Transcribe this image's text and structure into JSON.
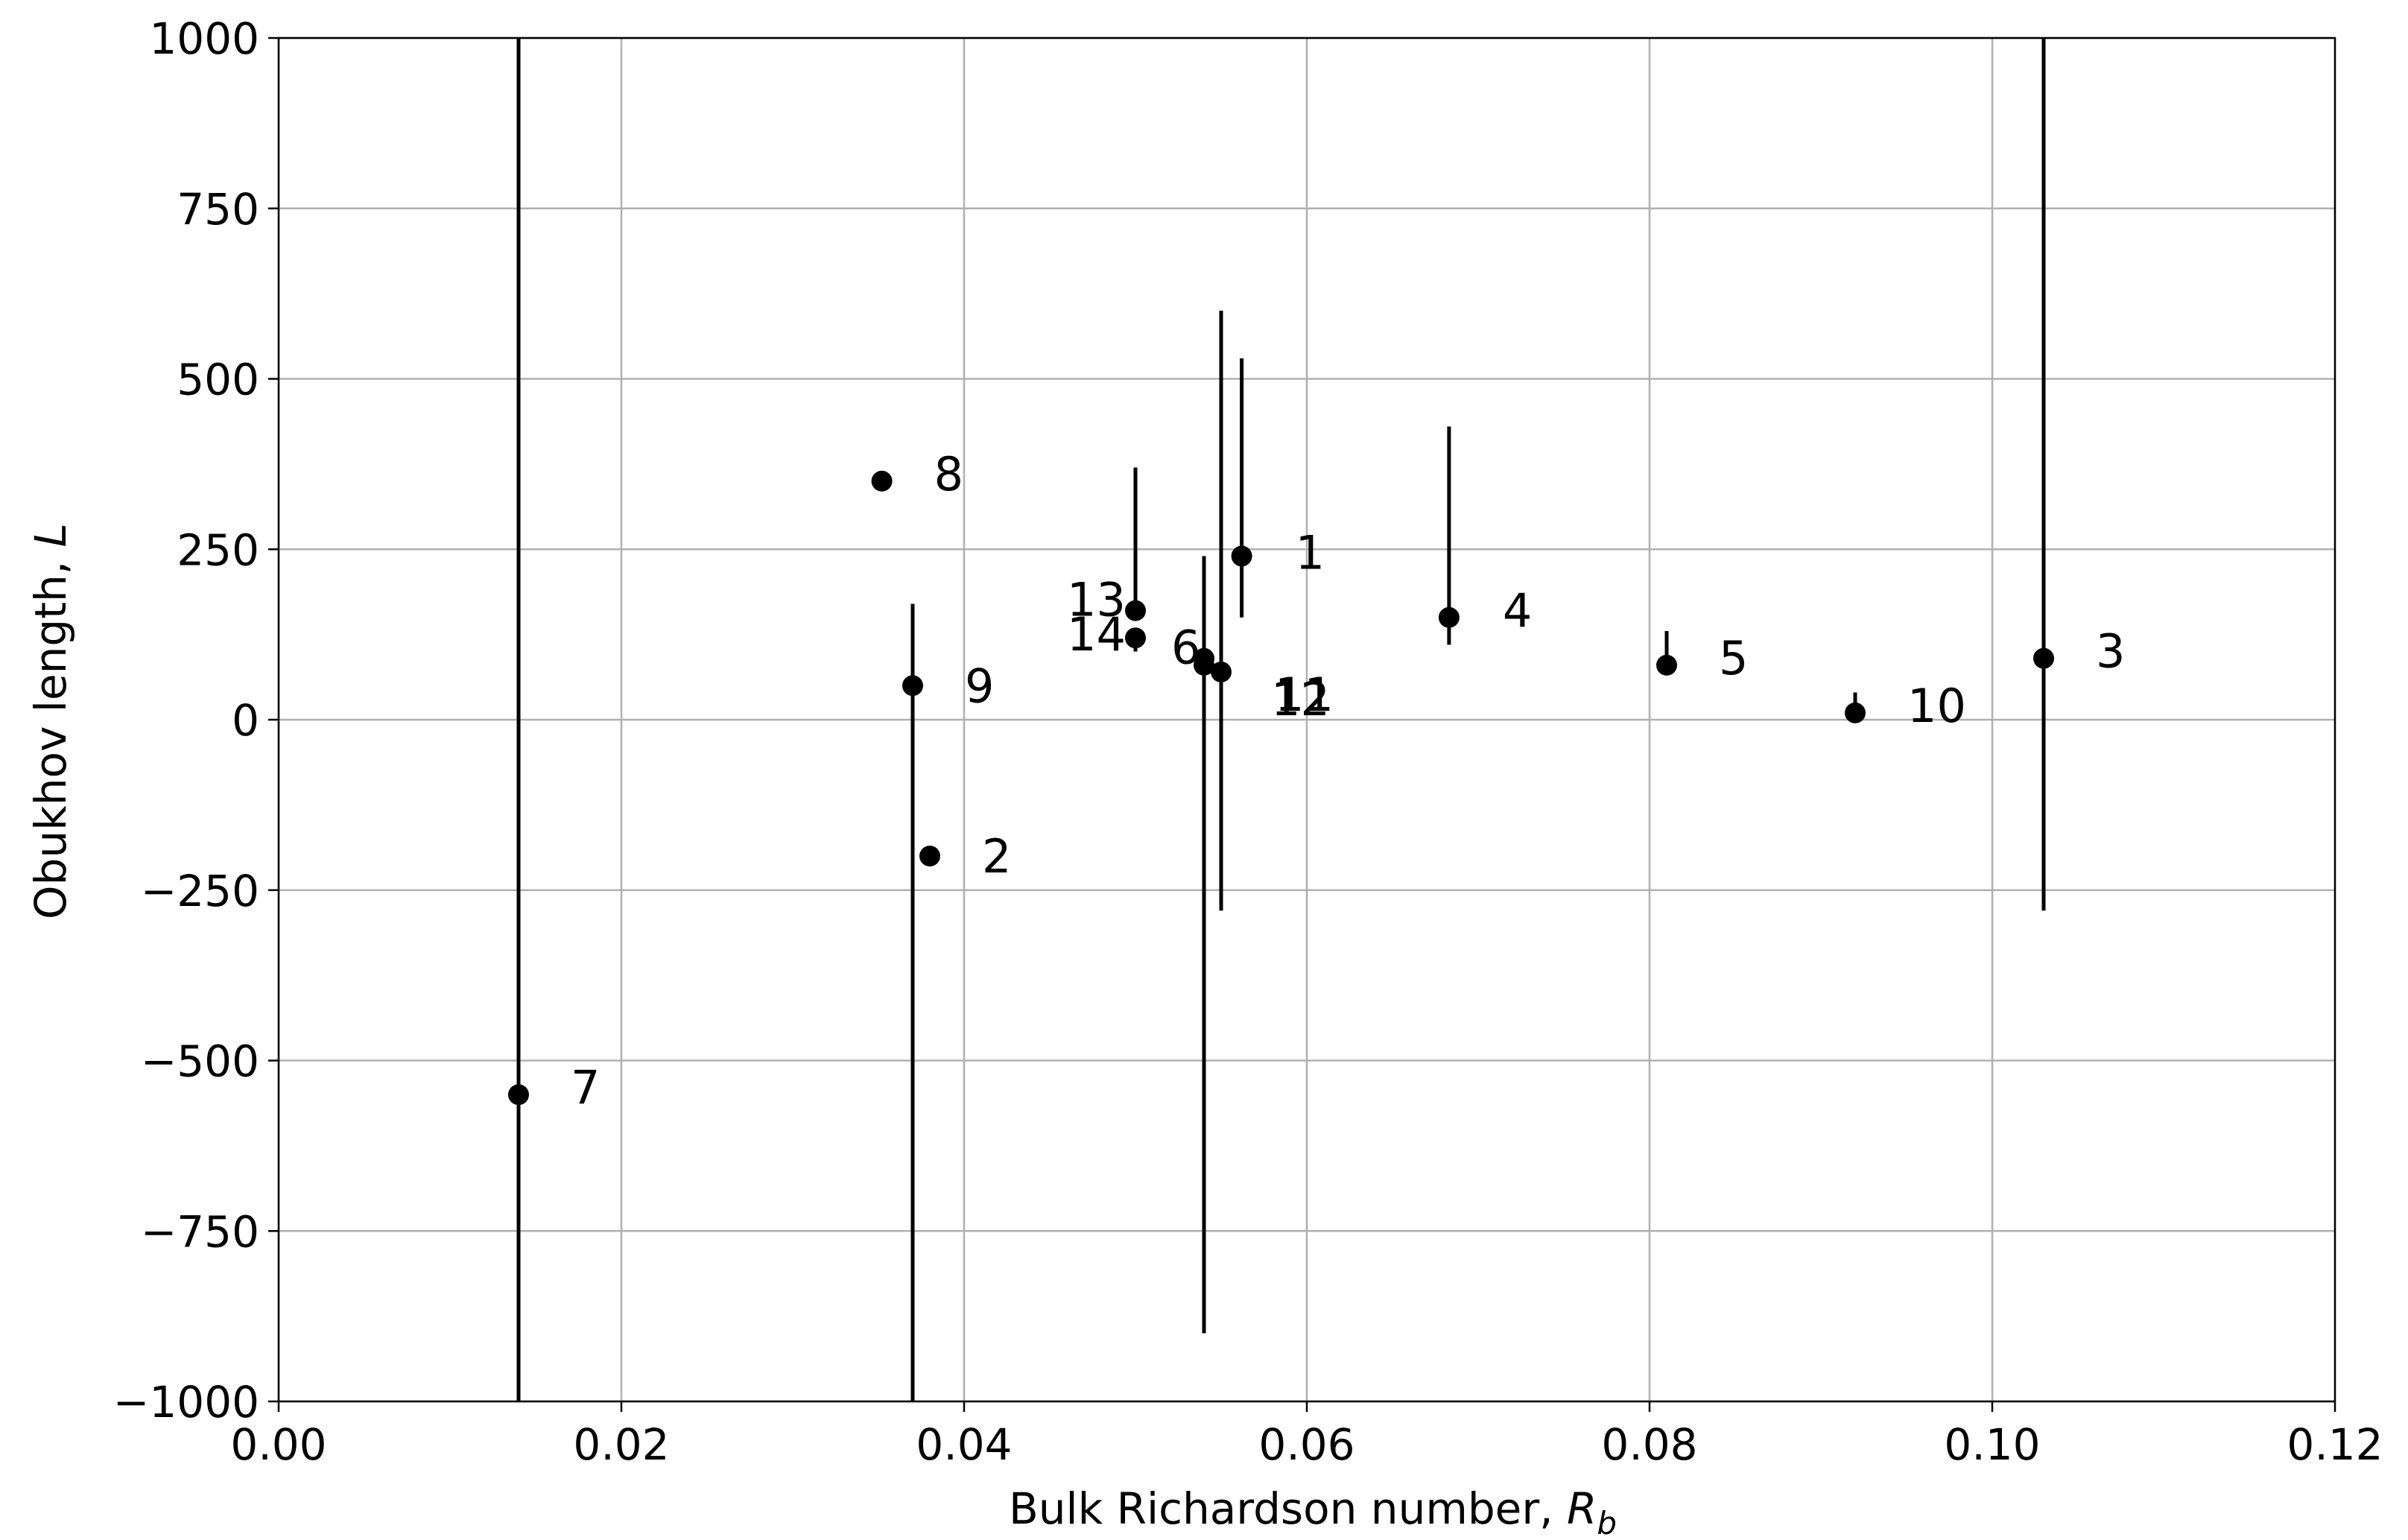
{
  "chart_data": {
    "type": "scatter",
    "title": "",
    "xlabel": "Bulk Richardson number, ",
    "xlabel_symbol": "R",
    "xlabel_sub": "b",
    "ylabel": "Obukhov length, ",
    "ylabel_symbol": "L",
    "xlim": [
      0.0,
      0.12
    ],
    "ylim": [
      -1000,
      1000
    ],
    "x_ticks": [
      0.0,
      0.02,
      0.04,
      0.06,
      0.08,
      0.1,
      0.12
    ],
    "x_tick_labels": [
      "0.00",
      "0.02",
      "0.04",
      "0.06",
      "0.08",
      "0.10",
      "0.12"
    ],
    "y_ticks": [
      -1000,
      -750,
      -500,
      -250,
      0,
      250,
      500,
      750,
      1000
    ],
    "y_tick_labels": [
      "−1000",
      "−750",
      "−500",
      "−250",
      "0",
      "250",
      "500",
      "750",
      "1000"
    ],
    "grid": true,
    "marker_color": "#000000",
    "points": [
      {
        "label": "1",
        "x": 0.0562,
        "y": 240,
        "err_low": 150,
        "err_high": 530
      },
      {
        "label": "2",
        "x": 0.038,
        "y": -200,
        "err_low": -200,
        "err_high": -200
      },
      {
        "label": "3",
        "x": 0.103,
        "y": 90,
        "err_low": -280,
        "err_high": 1000
      },
      {
        "label": "4",
        "x": 0.0683,
        "y": 150,
        "err_low": 110,
        "err_high": 430
      },
      {
        "label": "5",
        "x": 0.081,
        "y": 80,
        "err_low": 80,
        "err_high": 130
      },
      {
        "label": "6",
        "x": 0.054,
        "y": 90,
        "err_low": -900,
        "err_high": 240
      },
      {
        "label": "7",
        "x": 0.014,
        "y": -550,
        "err_low": -1000,
        "err_high": 1000
      },
      {
        "label": "8",
        "x": 0.0352,
        "y": 350,
        "err_low": 335,
        "err_high": 350
      },
      {
        "label": "9",
        "x": 0.037,
        "y": 50,
        "err_low": -1000,
        "err_high": 170
      },
      {
        "label": "10",
        "x": 0.092,
        "y": 10,
        "err_low": 10,
        "err_high": 40
      },
      {
        "label": "11",
        "x": 0.055,
        "y": 70,
        "err_low": -280,
        "err_high": 600
      },
      {
        "label": "12",
        "x": 0.054,
        "y": 80,
        "err_low": 80,
        "err_high": 80
      },
      {
        "label": "13",
        "x": 0.05,
        "y": 160,
        "err_low": 160,
        "err_high": 370
      },
      {
        "label": "14",
        "x": 0.05,
        "y": 120,
        "err_low": 100,
        "err_high": 120
      }
    ]
  }
}
